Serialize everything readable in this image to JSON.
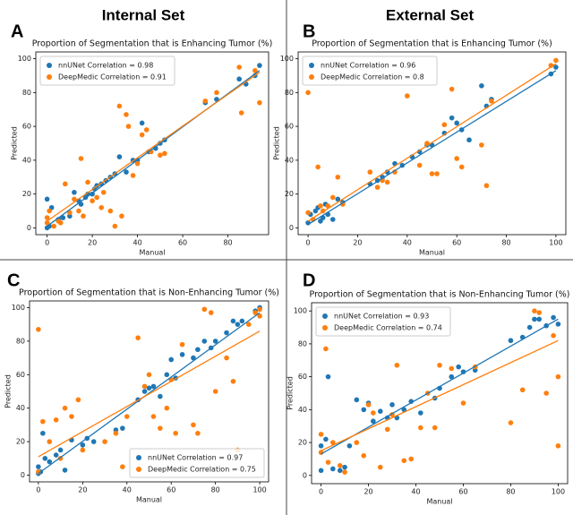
{
  "column_titles": [
    "Internal Set",
    "External Set"
  ],
  "chart_data": [
    {
      "type": "scatter",
      "label": "A",
      "title": "Proportion of Segmentation that is Enhancing Tumor (%)",
      "xlabel": "Manual",
      "ylabel": "Predicted",
      "xlim": [
        -5,
        98
      ],
      "ylim": [
        -4,
        104
      ],
      "xticks": [
        0,
        20,
        40,
        60,
        80
      ],
      "yticks": [
        0,
        20,
        40,
        60,
        80,
        100
      ],
      "legend": "upper left",
      "series": [
        {
          "name": "nnUNet Correlation = 0.98",
          "color": "#1f77b4",
          "x": [
            0,
            0,
            1,
            2,
            5,
            7,
            10,
            12,
            14,
            15,
            17,
            18,
            20,
            21,
            22,
            24,
            26,
            28,
            30,
            32,
            35,
            38,
            40,
            42,
            45,
            48,
            50,
            52,
            70,
            75,
            85,
            88,
            92,
            94
          ],
          "values": [
            0,
            17,
            1,
            12,
            5,
            6,
            7,
            21,
            16,
            14,
            18,
            20,
            20,
            23,
            25,
            26,
            28,
            30,
            32,
            42,
            33,
            40,
            40,
            62,
            45,
            47,
            50,
            52,
            74,
            76,
            88,
            85,
            90,
            96
          ],
          "trend_x": [
            0,
            94
          ],
          "trend_y": [
            1,
            93
          ]
        },
        {
          "name": "DeepMedic Correlation = 0.91",
          "color": "#ff7f0e",
          "x": [
            0,
            0,
            1,
            3,
            5,
            6,
            8,
            10,
            12,
            14,
            15,
            16,
            18,
            20,
            22,
            24,
            25,
            28,
            30,
            32,
            33,
            35,
            36,
            38,
            40,
            42,
            44,
            46,
            50,
            52,
            70,
            75,
            85,
            86,
            92,
            94
          ],
          "values": [
            3,
            6,
            10,
            1,
            4,
            3,
            26,
            9,
            17,
            10,
            41,
            7,
            27,
            16,
            18,
            12,
            21,
            10,
            1,
            72,
            7,
            67,
            60,
            31,
            38,
            55,
            58,
            45,
            43,
            44,
            75,
            80,
            95,
            68,
            93,
            74
          ],
          "trend_x": [
            0,
            94
          ],
          "trend_y": [
            4,
            92
          ]
        }
      ]
    },
    {
      "type": "scatter",
      "label": "B",
      "title": "Proportion of Segmentation that is Enhancing Tumor (%)",
      "xlabel": "Manual",
      "ylabel": "Predicted",
      "xlim": [
        -4,
        104
      ],
      "ylim": [
        -4,
        104
      ],
      "xticks": [
        0,
        20,
        40,
        60,
        80,
        100
      ],
      "yticks": [
        0,
        20,
        40,
        60,
        80,
        100
      ],
      "legend": "upper left",
      "series": [
        {
          "name": "nnUNet Correlation = 0.96",
          "color": "#1f77b4",
          "x": [
            0,
            1,
            3,
            4,
            5,
            6,
            7,
            8,
            10,
            12,
            14,
            25,
            28,
            30,
            32,
            35,
            38,
            42,
            45,
            48,
            50,
            55,
            58,
            60,
            62,
            65,
            70,
            72,
            74,
            98,
            100
          ],
          "values": [
            3,
            8,
            10,
            12,
            4,
            6,
            14,
            8,
            5,
            17,
            15,
            26,
            28,
            30,
            33,
            38,
            37,
            42,
            45,
            49,
            49,
            56,
            65,
            62,
            58,
            52,
            84,
            72,
            76,
            91,
            95
          ],
          "trend_x": [
            0,
            100
          ],
          "trend_y": [
            2,
            93
          ]
        },
        {
          "name": "DeepMedic Correlation = 0.8",
          "color": "#ff7f0e",
          "x": [
            0,
            0,
            2,
            4,
            5,
            6,
            8,
            10,
            12,
            14,
            25,
            28,
            30,
            32,
            35,
            40,
            45,
            48,
            50,
            52,
            55,
            58,
            60,
            62,
            70,
            72,
            74,
            98,
            100
          ],
          "values": [
            80,
            9,
            5,
            36,
            13,
            10,
            13,
            18,
            30,
            14,
            33,
            24,
            28,
            27,
            33,
            78,
            37,
            50,
            32,
            32,
            61,
            82,
            41,
            36,
            49,
            25,
            75,
            96,
            99
          ],
          "trend_x": [
            0,
            100
          ],
          "trend_y": [
            4,
            97
          ]
        }
      ]
    },
    {
      "type": "scatter",
      "label": "C",
      "title": "Proportion of Segmentation that is Non-Enhancing Tumor (%)",
      "xlabel": "Manual",
      "ylabel": "Predicted",
      "xlim": [
        -4,
        104
      ],
      "ylim": [
        -4,
        104
      ],
      "xticks": [
        0,
        20,
        40,
        60,
        80,
        100
      ],
      "yticks": [
        0,
        20,
        40,
        60,
        80,
        100
      ],
      "legend": "lower right",
      "series": [
        {
          "name": "nnUNet Correlation = 0.97",
          "color": "#1f77b4",
          "x": [
            0,
            0,
            1,
            2,
            3,
            5,
            8,
            10,
            12,
            15,
            20,
            22,
            25,
            35,
            38,
            45,
            48,
            50,
            52,
            55,
            58,
            60,
            62,
            65,
            70,
            72,
            75,
            78,
            80,
            85,
            88,
            90,
            92,
            98,
            100
          ],
          "values": [
            1,
            5,
            2,
            25,
            10,
            8,
            12,
            15,
            3,
            21,
            18,
            22,
            20,
            27,
            28,
            45,
            50,
            52,
            53,
            47,
            60,
            69,
            58,
            72,
            70,
            75,
            80,
            76,
            80,
            85,
            92,
            90,
            92,
            98,
            100
          ],
          "trend_x": [
            0,
            100
          ],
          "trend_y": [
            1,
            97
          ]
        },
        {
          "name": "DeepMedic Correlation = 0.75",
          "color": "#ff7f0e",
          "x": [
            0,
            0,
            2,
            5,
            8,
            10,
            12,
            15,
            18,
            20,
            30,
            35,
            38,
            40,
            45,
            48,
            50,
            52,
            55,
            58,
            60,
            62,
            65,
            70,
            72,
            75,
            78,
            80,
            85,
            88,
            90,
            95,
            98,
            100,
            100
          ],
          "values": [
            87,
            2,
            32,
            20,
            33,
            10,
            40,
            35,
            45,
            15,
            20,
            25,
            5,
            35,
            82,
            53,
            60,
            35,
            28,
            40,
            57,
            25,
            78,
            30,
            25,
            99,
            97,
            50,
            70,
            56,
            15,
            90,
            97,
            99,
            95
          ],
          "trend_x": [
            0,
            100
          ],
          "trend_y": [
            11,
            86
          ]
        }
      ]
    },
    {
      "type": "scatter",
      "label": "D",
      "title": "Proportion of Segmentation that is Non-Enhancing Tumor (%)",
      "xlabel": "Manual",
      "ylabel": "Predicted",
      "xlim": [
        -4,
        104
      ],
      "ylim": [
        -5,
        105
      ],
      "xticks": [
        0,
        20,
        40,
        60,
        80,
        100
      ],
      "yticks": [
        0,
        20,
        40,
        60,
        80,
        100
      ],
      "legend": "upper left",
      "series": [
        {
          "name": "nnUNet Correlation = 0.93",
          "color": "#1f77b4",
          "x": [
            0,
            0,
            2,
            3,
            5,
            8,
            10,
            12,
            15,
            18,
            20,
            22,
            25,
            28,
            30,
            32,
            35,
            38,
            42,
            48,
            50,
            55,
            58,
            60,
            65,
            80,
            85,
            88,
            90,
            92,
            95,
            98,
            100
          ],
          "values": [
            3,
            18,
            22,
            60,
            4,
            3,
            5,
            18,
            46,
            40,
            44,
            33,
            39,
            35,
            43,
            35,
            40,
            45,
            38,
            47,
            53,
            60,
            66,
            63,
            64,
            82,
            84,
            90,
            95,
            95,
            91,
            96,
            92
          ],
          "trend_x": [
            0,
            100
          ],
          "trend_y": [
            13,
            95
          ]
        },
        {
          "name": "DeepMedic Correlation = 0.74",
          "color": "#ff7f0e",
          "x": [
            0,
            0,
            2,
            3,
            5,
            8,
            10,
            15,
            18,
            20,
            22,
            25,
            28,
            30,
            32,
            35,
            38,
            42,
            45,
            48,
            50,
            55,
            60,
            65,
            80,
            85,
            90,
            92,
            95,
            98,
            100,
            100
          ],
          "values": [
            14,
            25,
            77,
            8,
            20,
            6,
            2,
            20,
            12,
            43,
            38,
            5,
            28,
            37,
            67,
            9,
            10,
            29,
            50,
            29,
            67,
            65,
            44,
            66,
            32,
            52,
            100,
            99,
            50,
            85,
            60,
            18
          ],
          "trend_x": [
            0,
            100
          ],
          "trend_y": [
            15,
            82
          ]
        }
      ]
    }
  ]
}
